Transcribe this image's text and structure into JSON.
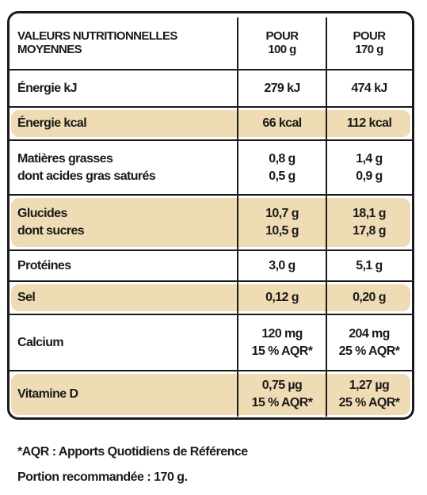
{
  "table": {
    "header": [
      [
        "VALEURS NUTRITIONNELLES",
        "MOYENNES"
      ],
      [
        "POUR",
        "100 g"
      ],
      [
        "POUR",
        "170 g"
      ]
    ],
    "rows": [
      {
        "cells": [
          [
            "Énergie kJ"
          ],
          [
            "279 kJ"
          ],
          [
            "474 kJ"
          ]
        ],
        "shaded": false
      },
      {
        "cells": [
          [
            "Énergie kcal"
          ],
          [
            "66 kcal"
          ],
          [
            "112 kcal"
          ]
        ],
        "shaded": true
      },
      {
        "cells": [
          [
            "Matières grasses",
            "dont acides gras saturés"
          ],
          [
            "0,8 g",
            "0,5 g"
          ],
          [
            "1,4 g",
            "0,9 g"
          ]
        ],
        "shaded": false
      },
      {
        "cells": [
          [
            "Glucides",
            "dont sucres"
          ],
          [
            "10,7 g",
            "10,5 g"
          ],
          [
            "18,1 g",
            "17,8 g"
          ]
        ],
        "shaded": true
      },
      {
        "cells": [
          [
            "Protéines"
          ],
          [
            "3,0 g"
          ],
          [
            "5,1 g"
          ]
        ],
        "shaded": false
      },
      {
        "cells": [
          [
            "Sel"
          ],
          [
            "0,12 g"
          ],
          [
            "0,20 g"
          ]
        ],
        "shaded": true
      },
      {
        "cells": [
          [
            "Calcium"
          ],
          [
            "120 mg",
            "15 % AQR*"
          ],
          [
            "204 mg",
            "25 % AQR*"
          ]
        ],
        "shaded": false
      },
      {
        "cells": [
          [
            "Vitamine D"
          ],
          [
            "0,75 µg",
            "15 % AQR*"
          ],
          [
            "1,27 µg",
            "25 % AQR*"
          ]
        ],
        "shaded": true
      }
    ]
  },
  "footnotes": [
    "*AQR : Apports Quotidiens de Référence",
    "Portion recommandée : 170 g."
  ]
}
